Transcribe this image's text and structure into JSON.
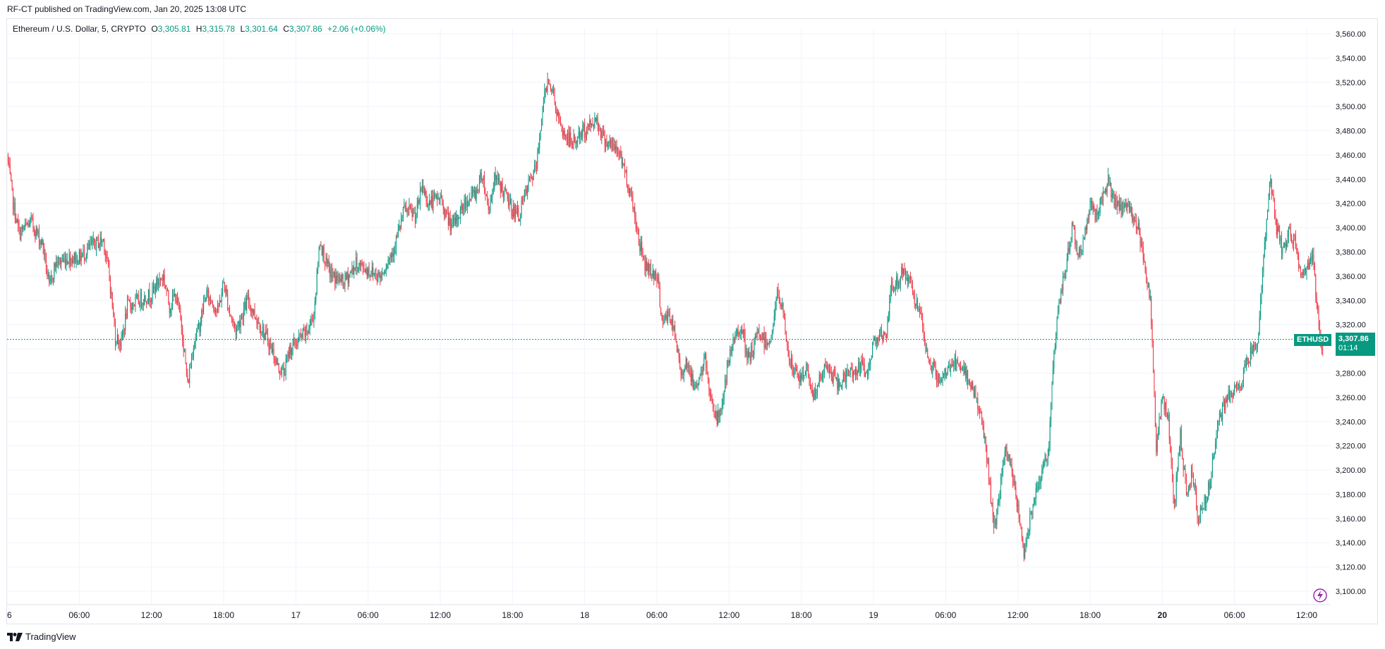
{
  "header": {
    "published": "RF-CT published on TradingView.com, Jan 20, 2025 13:08 UTC"
  },
  "legend": {
    "symbol": "Ethereum / U.S. Dollar, 5, CRYPTO",
    "open_label": "O",
    "open": "3,305.81",
    "high_label": "H",
    "high": "3,315.78",
    "low_label": "L",
    "low": "3,301.64",
    "close_label": "C",
    "close": "3,307.86",
    "change": "+2.06 (+0.06%)"
  },
  "badge": {
    "symbol": "ETHUSD",
    "price": "3,307.86",
    "countdown": "01:14"
  },
  "footer": {
    "brand": "TradingView"
  },
  "colors": {
    "up": "#089981",
    "down": "#f23645",
    "grid": "#f0f3fa",
    "axis_text": "#131722"
  },
  "icons": {
    "brand": "tradingview-logo-icon",
    "snapshot": "lightning-circle-icon"
  },
  "chart_data": {
    "type": "candlestick",
    "title": "",
    "ylim": [
      3090,
      3570
    ],
    "y_ticks": [
      "3,100.00",
      "3,120.00",
      "3,140.00",
      "3,160.00",
      "3,180.00",
      "3,200.00",
      "3,220.00",
      "3,240.00",
      "3,260.00",
      "3,280.00",
      "3,300.00",
      "3,320.00",
      "3,340.00",
      "3,360.00",
      "3,380.00",
      "3,400.00",
      "3,420.00",
      "3,440.00",
      "3,460.00",
      "3,480.00",
      "3,500.00",
      "3,520.00",
      "3,540.00",
      "3,560.00"
    ],
    "y_tick_values": [
      3100,
      3120,
      3140,
      3160,
      3180,
      3200,
      3220,
      3240,
      3260,
      3280,
      3300,
      3320,
      3340,
      3360,
      3380,
      3400,
      3420,
      3440,
      3460,
      3480,
      3500,
      3520,
      3540,
      3560
    ],
    "x_ticks": [
      {
        "label": "6",
        "h": 0,
        "bold": false
      },
      {
        "label": "06:00",
        "h": 6,
        "bold": false
      },
      {
        "label": "12:00",
        "h": 12,
        "bold": false
      },
      {
        "label": "18:00",
        "h": 18,
        "bold": false
      },
      {
        "label": "17",
        "h": 24,
        "bold": false
      },
      {
        "label": "06:00",
        "h": 30,
        "bold": false
      },
      {
        "label": "12:00",
        "h": 36,
        "bold": false
      },
      {
        "label": "18:00",
        "h": 42,
        "bold": false
      },
      {
        "label": "18",
        "h": 48,
        "bold": false
      },
      {
        "label": "06:00",
        "h": 54,
        "bold": false
      },
      {
        "label": "12:00",
        "h": 60,
        "bold": false
      },
      {
        "label": "18:00",
        "h": 66,
        "bold": false
      },
      {
        "label": "19",
        "h": 72,
        "bold": false
      },
      {
        "label": "06:00",
        "h": 78,
        "bold": false
      },
      {
        "label": "12:00",
        "h": 84,
        "bold": false
      },
      {
        "label": "18:00",
        "h": 90,
        "bold": false
      },
      {
        "label": "20",
        "h": 96,
        "bold": true
      },
      {
        "label": "06:00",
        "h": 102,
        "bold": false
      },
      {
        "label": "12:00",
        "h": 108,
        "bold": false
      }
    ],
    "x_range_hours": [
      0,
      109.1
    ],
    "last_price": 3307.86,
    "path": [
      [
        0,
        3460
      ],
      [
        0.5,
        3420
      ],
      [
        1,
        3395
      ],
      [
        2,
        3405
      ],
      [
        3,
        3385
      ],
      [
        3.5,
        3350
      ],
      [
        4,
        3370
      ],
      [
        5,
        3375
      ],
      [
        6,
        3375
      ],
      [
        7,
        3385
      ],
      [
        8,
        3390
      ],
      [
        8.5,
        3360
      ],
      [
        9,
        3310
      ],
      [
        9.5,
        3305
      ],
      [
        10,
        3335
      ],
      [
        11,
        3340
      ],
      [
        12,
        3345
      ],
      [
        12.5,
        3355
      ],
      [
        13,
        3360
      ],
      [
        13.5,
        3335
      ],
      [
        14,
        3345
      ],
      [
        14.5,
        3320
      ],
      [
        15,
        3270
      ],
      [
        15.5,
        3305
      ],
      [
        16,
        3320
      ],
      [
        16.5,
        3345
      ],
      [
        17,
        3340
      ],
      [
        17.5,
        3330
      ],
      [
        18,
        3355
      ],
      [
        18.5,
        3330
      ],
      [
        19,
        3315
      ],
      [
        20,
        3340
      ],
      [
        20.5,
        3330
      ],
      [
        21,
        3320
      ],
      [
        22,
        3300
      ],
      [
        22.5,
        3285
      ],
      [
        23,
        3280
      ],
      [
        23.5,
        3300
      ],
      [
        24,
        3305
      ],
      [
        25,
        3315
      ],
      [
        25.5,
        3330
      ],
      [
        26,
        3390
      ],
      [
        26.5,
        3370
      ],
      [
        27,
        3360
      ],
      [
        28,
        3355
      ],
      [
        29,
        3370
      ],
      [
        30,
        3365
      ],
      [
        31,
        3360
      ],
      [
        32,
        3380
      ],
      [
        32.5,
        3395
      ],
      [
        33,
        3415
      ],
      [
        34,
        3410
      ],
      [
        34.5,
        3435
      ],
      [
        35,
        3420
      ],
      [
        36,
        3425
      ],
      [
        36.5,
        3410
      ],
      [
        37,
        3400
      ],
      [
        38,
        3420
      ],
      [
        39,
        3430
      ],
      [
        39.5,
        3445
      ],
      [
        40,
        3415
      ],
      [
        40.5,
        3440
      ],
      [
        41,
        3435
      ],
      [
        42,
        3415
      ],
      [
        42.5,
        3410
      ],
      [
        43,
        3425
      ],
      [
        43.5,
        3440
      ],
      [
        44,
        3450
      ],
      [
        44.5,
        3500
      ],
      [
        45,
        3525
      ],
      [
        45.5,
        3505
      ],
      [
        46,
        3480
      ],
      [
        47,
        3470
      ],
      [
        48,
        3480
      ],
      [
        49,
        3490
      ],
      [
        49.5,
        3475
      ],
      [
        50,
        3470
      ],
      [
        51,
        3460
      ],
      [
        52,
        3420
      ],
      [
        52.5,
        3390
      ],
      [
        53,
        3370
      ],
      [
        54,
        3360
      ],
      [
        54.5,
        3320
      ],
      [
        55,
        3330
      ],
      [
        55.5,
        3310
      ],
      [
        56,
        3280
      ],
      [
        56.5,
        3290
      ],
      [
        57,
        3270
      ],
      [
        57.5,
        3275
      ],
      [
        58,
        3290
      ],
      [
        58.5,
        3260
      ],
      [
        59,
        3240
      ],
      [
        59.5,
        3260
      ],
      [
        60,
        3290
      ],
      [
        60.5,
        3310
      ],
      [
        61,
        3320
      ],
      [
        61.5,
        3290
      ],
      [
        62,
        3300
      ],
      [
        62.5,
        3315
      ],
      [
        63,
        3305
      ],
      [
        63.5,
        3310
      ],
      [
        64,
        3345
      ],
      [
        64.5,
        3330
      ],
      [
        65,
        3290
      ],
      [
        65.5,
        3280
      ],
      [
        66,
        3275
      ],
      [
        66.5,
        3285
      ],
      [
        67,
        3260
      ],
      [
        68,
        3285
      ],
      [
        68.5,
        3280
      ],
      [
        69,
        3270
      ],
      [
        70,
        3280
      ],
      [
        71,
        3285
      ],
      [
        71.5,
        3280
      ],
      [
        72,
        3305
      ],
      [
        72.5,
        3315
      ],
      [
        73,
        3305
      ],
      [
        73.5,
        3350
      ],
      [
        74,
        3355
      ],
      [
        74.5,
        3365
      ],
      [
        75,
        3355
      ],
      [
        75.5,
        3340
      ],
      [
        76,
        3320
      ],
      [
        76.5,
        3290
      ],
      [
        77,
        3285
      ],
      [
        77.5,
        3270
      ],
      [
        78,
        3280
      ],
      [
        78.5,
        3290
      ],
      [
        79,
        3285
      ],
      [
        80,
        3275
      ],
      [
        80.5,
        3260
      ],
      [
        81,
        3240
      ],
      [
        81.5,
        3205
      ],
      [
        82,
        3150
      ],
      [
        82.5,
        3180
      ],
      [
        83,
        3220
      ],
      [
        83.5,
        3195
      ],
      [
        84,
        3170
      ],
      [
        84.5,
        3130
      ],
      [
        85,
        3160
      ],
      [
        85.5,
        3185
      ],
      [
        86,
        3200
      ],
      [
        86.5,
        3210
      ],
      [
        87,
        3300
      ],
      [
        87.5,
        3340
      ],
      [
        88,
        3370
      ],
      [
        88.5,
        3400
      ],
      [
        89,
        3380
      ],
      [
        89.5,
        3390
      ],
      [
        90,
        3420
      ],
      [
        90.5,
        3410
      ],
      [
        91,
        3425
      ],
      [
        91.5,
        3440
      ],
      [
        92,
        3420
      ],
      [
        92.5,
        3415
      ],
      [
        93,
        3420
      ],
      [
        93.5,
        3410
      ],
      [
        94,
        3400
      ],
      [
        94.5,
        3375
      ],
      [
        95,
        3340
      ],
      [
        95.5,
        3220
      ],
      [
        96,
        3260
      ],
      [
        96.5,
        3240
      ],
      [
        97,
        3170
      ],
      [
        97.5,
        3230
      ],
      [
        98,
        3180
      ],
      [
        98.5,
        3200
      ],
      [
        99,
        3160
      ],
      [
        99.5,
        3175
      ],
      [
        100,
        3190
      ],
      [
        100.5,
        3230
      ],
      [
        101,
        3250
      ],
      [
        101.5,
        3260
      ],
      [
        102,
        3265
      ],
      [
        102.5,
        3270
      ],
      [
        103,
        3290
      ],
      [
        103.5,
        3300
      ],
      [
        104,
        3310
      ],
      [
        104.5,
        3390
      ],
      [
        105,
        3440
      ],
      [
        105.5,
        3400
      ],
      [
        106,
        3380
      ],
      [
        106.5,
        3395
      ],
      [
        107,
        3390
      ],
      [
        107.5,
        3360
      ],
      [
        108,
        3365
      ],
      [
        108.5,
        3375
      ],
      [
        109,
        3320
      ],
      [
        109.2,
        3295
      ],
      [
        109.4,
        3310
      ]
    ]
  }
}
